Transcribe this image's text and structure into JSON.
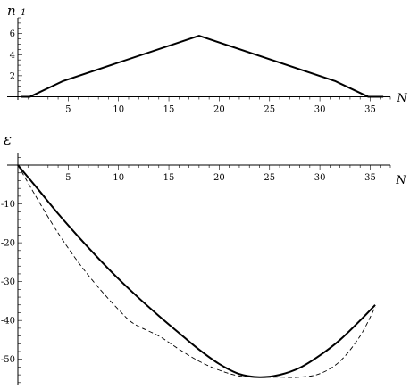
{
  "chart_data": [
    {
      "type": "line",
      "ylabel_main": "n",
      "ylabel_sub": "1",
      "xlabel": "N",
      "xlim": [
        0,
        37
      ],
      "ylim": [
        -0.3,
        7.5
      ],
      "x_ticks": [
        5,
        10,
        15,
        20,
        25,
        30,
        35
      ],
      "y_ticks": [
        2,
        4,
        6
      ],
      "grid": false,
      "series": [
        {
          "style": "solid",
          "x": [
            0.3,
            1.2,
            4.5,
            18.0,
            31.5,
            34.8,
            36.3
          ],
          "y": [
            0,
            0,
            1.5,
            5.8,
            1.5,
            0,
            0
          ]
        }
      ]
    },
    {
      "type": "line",
      "ylabel_main": "ε",
      "xlabel": "N",
      "xlim": [
        0,
        37
      ],
      "ylim": [
        -56.5,
        3
      ],
      "x_ticks": [
        5,
        10,
        15,
        20,
        25,
        30,
        35
      ],
      "y_ticks": [
        -10,
        -20,
        -30,
        -40,
        -50
      ],
      "grid": false,
      "series": [
        {
          "style": "solid",
          "x": [
            0,
            2,
            4,
            6,
            8,
            10,
            12,
            14,
            16,
            18,
            20,
            22,
            24,
            26,
            28,
            30,
            32,
            34,
            35.5
          ],
          "y": [
            0,
            -6.2,
            -12.5,
            -18.4,
            -24.0,
            -29.3,
            -34.2,
            -38.8,
            -43.2,
            -47.5,
            -51.2,
            -53.8,
            -54.6,
            -54.0,
            -52.2,
            -49.0,
            -45.0,
            -40.0,
            -36.0
          ]
        },
        {
          "style": "dashed",
          "x": [
            0,
            2,
            4,
            6,
            8,
            10,
            11.5,
            14,
            16,
            18,
            20,
            22,
            24,
            26,
            28,
            30,
            32,
            34,
            35.5
          ],
          "y": [
            0,
            -9.0,
            -17.5,
            -25.0,
            -31.5,
            -37.2,
            -40.8,
            -44.0,
            -47.4,
            -50.5,
            -52.8,
            -54.3,
            -54.6,
            -54.6,
            -54.6,
            -53.7,
            -50.5,
            -44.0,
            -36.5
          ]
        }
      ]
    }
  ]
}
